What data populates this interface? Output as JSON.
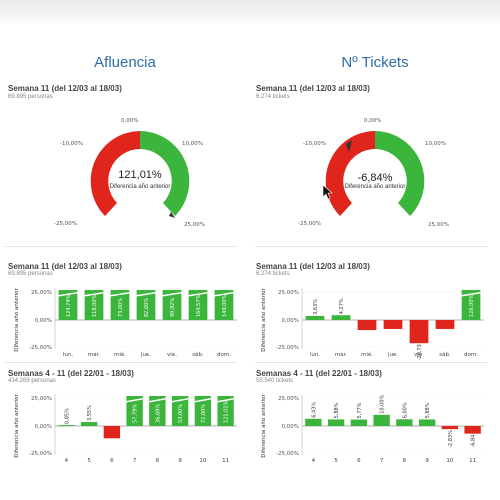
{
  "header": {
    "left_title": "Afluencia",
    "right_title": "Nº Tickets"
  },
  "colors": {
    "positive": "#3cb53c",
    "negative": "#e0261c",
    "accent": "#2d6ea8"
  },
  "gauges": [
    {
      "title": "Semana 11 (del 12/03 al 18/03)",
      "subtitle": "69.895 personas",
      "value_text": "121,01%",
      "label": "Diferencia año anterior",
      "ticks": {
        "tl": "-10,00%",
        "top": "0,00%",
        "tr": "10,00%",
        "bl": "-25,00%",
        "br": "25,00%"
      },
      "value": 121.01
    },
    {
      "title": "Semana 11 (del 12/03 al 18/03)",
      "subtitle": "6.274 tickets",
      "value_text": "-6,84%",
      "label": "Diferencia año anterior",
      "ticks": {
        "tl": "-10,00%",
        "top": "0,00%",
        "tr": "10,00%",
        "bl": "-25,00%",
        "br": "25,00%"
      },
      "value": -6.84
    }
  ],
  "charts": [
    {
      "title": "Semana 11 (del 12/03 al 18/03)",
      "subtitle": "69.895 personas",
      "ylabel": "Diferencia año anterior",
      "yticks": [
        "25,00%",
        "0,00%",
        "-25,00%"
      ],
      "categories": [
        "lun.",
        "mar.",
        "mié.",
        "jue.",
        "vie.",
        "sáb.",
        "dom."
      ],
      "labels": [
        "124,74%",
        "118,00%",
        "73,00%",
        "82,00%",
        "99,92%",
        "164,57%",
        "149,00%"
      ],
      "values": [
        124.74,
        118.0,
        73.0,
        82.0,
        99.92,
        164.57,
        149.0
      ]
    },
    {
      "title": "Semana 11 (del 12/03 al 18/03)",
      "subtitle": "6.274 tickets",
      "ylabel": "Diferencia año anterior",
      "yticks": [
        "25,00%",
        "0,00%",
        "-25,00%"
      ],
      "categories": [
        "lun.",
        "mar.",
        "mié.",
        "jue.",
        "vie.",
        "sáb.",
        "dom."
      ],
      "labels": [
        "3,63%",
        "4,27%",
        "",
        "",
        "-20,73",
        "",
        "126,00%"
      ],
      "values": [
        3.63,
        4.27,
        -9.0,
        -8.0,
        -20.73,
        -8.0,
        126.0
      ]
    },
    {
      "title": "Semanas 4 - 11 (del 22/01 - 18/03)",
      "subtitle": "434.269 personas",
      "ylabel": "Diferencia año anterior",
      "yticks": [
        "25,00%",
        "0,00%",
        "-25,00%"
      ],
      "categories": [
        "4",
        "5",
        "6",
        "7",
        "8",
        "9",
        "10",
        "11"
      ],
      "labels": [
        "0,85%",
        "3,55%",
        "",
        "57,79%",
        "36,69%",
        "53,00%",
        "72,00%",
        "121,01%"
      ],
      "values": [
        0.85,
        3.55,
        -11.0,
        57.79,
        36.69,
        53.0,
        72.0,
        121.01
      ]
    },
    {
      "title": "Semanas 4 - 11 (del 22/01 - 18/03)",
      "subtitle": "55.540 tickets",
      "ylabel": "Diferencia año anterior",
      "yticks": [
        "25,00%",
        "0,00%",
        "-25,00%"
      ],
      "categories": [
        "4",
        "5",
        "6",
        "7",
        "8",
        "9",
        "10",
        "11"
      ],
      "labels": [
        "6,43%",
        "5,88%",
        "5,77%",
        "10,00%",
        "6,00%",
        "5,88%",
        "-2,83%",
        "-6,84"
      ],
      "values": [
        6.43,
        5.88,
        5.77,
        10.0,
        6.0,
        5.88,
        -2.83,
        -6.84
      ]
    }
  ]
}
